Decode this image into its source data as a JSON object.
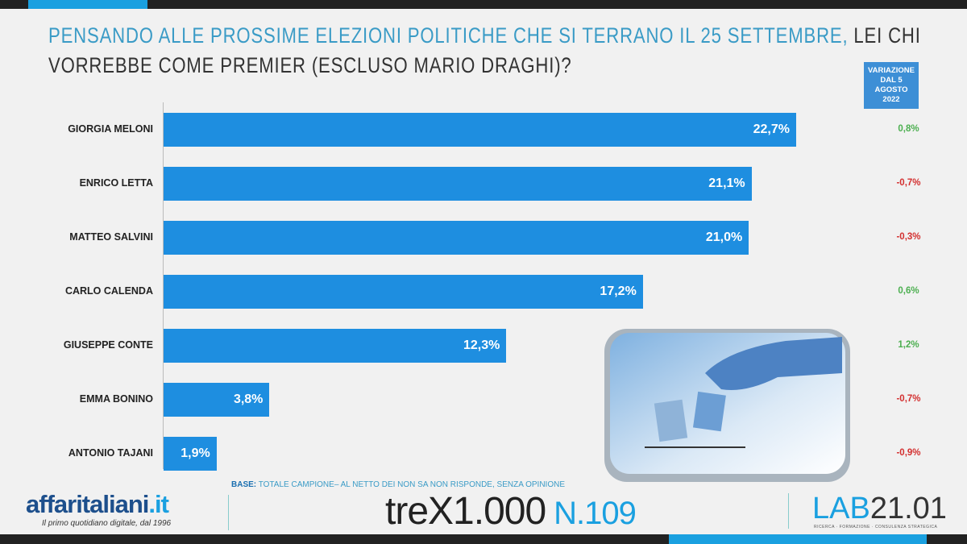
{
  "title": {
    "highlight": "PENSANDO ALLE PROSSIME ELEZIONI POLITICHE CHE SI TERRANO IL 25 SETTEMBRE,",
    "rest_line1": " LEI CHI",
    "line2": "VORREBBE COME PREMIER (ESCLUSO MARIO DRAGHI)?"
  },
  "variation_header": "VARIAZIONE DAL 5 AGOSTO 2022",
  "chart_data": {
    "type": "bar",
    "orientation": "horizontal",
    "title": "PENSANDO ALLE PROSSIME ELEZIONI POLITICHE CHE SI TERRANO IL 25 SETTEMBRE, LEI CHI VORREBBE COME PREMIER (ESCLUSO MARIO DRAGHI)?",
    "categories": [
      "GIORGIA MELONI",
      "ENRICO LETTA",
      "MATTEO SALVINI",
      "CARLO CALENDA",
      "GIUSEPPE CONTE",
      "EMMA BONINO",
      "ANTONIO TAJANI"
    ],
    "values": [
      22.7,
      21.1,
      21.0,
      17.2,
      12.3,
      3.8,
      1.9
    ],
    "value_labels": [
      "22,7%",
      "21,1%",
      "21,0%",
      "17,2%",
      "12,3%",
      "3,8%",
      "1,9%"
    ],
    "variation_labels": [
      "0,8%",
      "-0,7%",
      "-0,3%",
      "0,6%",
      "1,2%",
      "-0,7%",
      "-0,9%"
    ],
    "variation": [
      0.8,
      -0.7,
      -0.3,
      0.6,
      1.2,
      -0.7,
      -0.9
    ],
    "xlim": [
      0,
      22.7
    ],
    "bar_color": "#1e8ee0",
    "positive_color": "#4caf50",
    "negative_color": "#d32f2f"
  },
  "base_note": {
    "label": "BASE:",
    "text": " TOTALE CAMPIONE– AL NETTO DEI NON SA NON RISPONDE, SENZA OPINIONE"
  },
  "footer": {
    "logo_left": "affaritaliani",
    "logo_left_tld": ".it",
    "logo_left_tagline": "Il primo quotidiano digitale, dal 1996",
    "logo_center": "treX1.000",
    "logo_center_number": "N.109",
    "logo_right": "LAB",
    "logo_right_num": "21.01",
    "logo_right_tagline": "RICERCA · FORMAZIONE · CONSULENZA STRATEGICA"
  }
}
